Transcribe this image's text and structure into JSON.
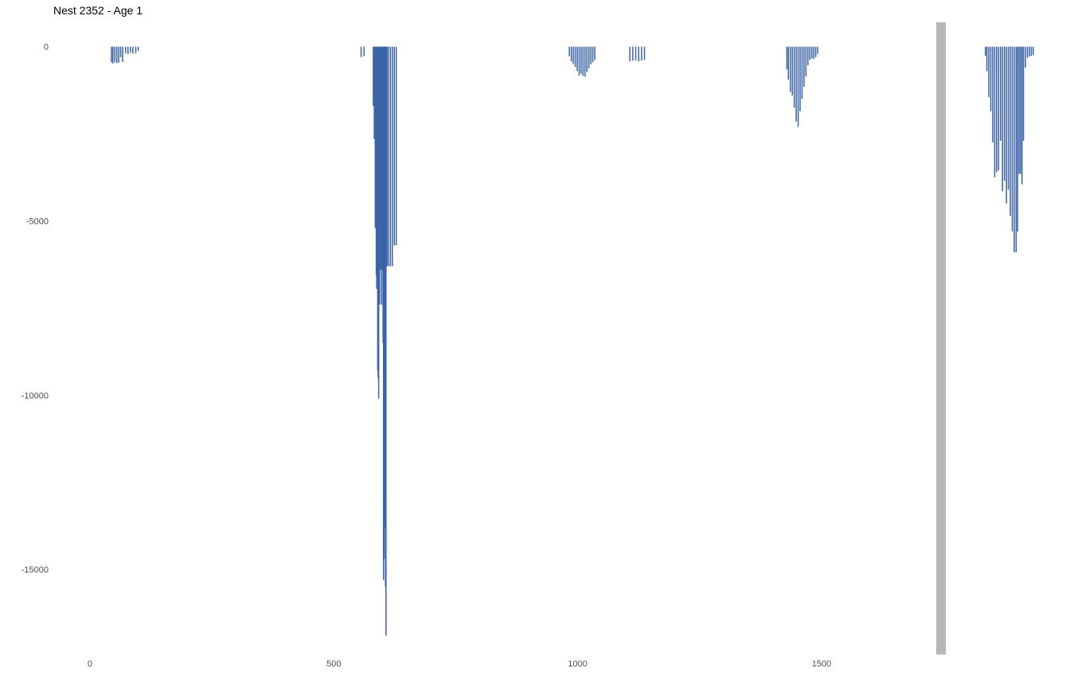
{
  "chart_data": {
    "type": "bar",
    "title": "Nest 2352 - Age 1",
    "xlabel": "",
    "ylabel": "",
    "xlim": [
      -155,
      1980
    ],
    "ylim": [
      -17900,
      700
    ],
    "x_ticks": [
      0,
      500,
      1000,
      1500
    ],
    "y_ticks": [
      0,
      -5000,
      -10000,
      -15000
    ],
    "grid": false,
    "bar_color": "#3a63a8",
    "highlight_color": "#b8b8b8",
    "highlight_x": 1745,
    "series": [
      {
        "values": [
          [
            44,
            -450
          ],
          [
            47,
            -480
          ],
          [
            51,
            -440
          ],
          [
            55,
            -470
          ],
          [
            59,
            -460
          ],
          [
            63,
            -300
          ],
          [
            67,
            -440
          ],
          [
            73,
            -190
          ],
          [
            78,
            -210
          ],
          [
            83,
            -170
          ],
          [
            88,
            -200
          ],
          [
            94,
            -190
          ],
          [
            99,
            -120
          ],
          [
            556,
            -300
          ],
          [
            562,
            -270
          ],
          [
            581,
            -1700
          ],
          [
            583,
            -2650
          ],
          [
            585,
            -5200
          ],
          [
            587,
            -6550
          ],
          [
            588,
            -6950
          ],
          [
            590,
            -9300
          ],
          [
            591,
            -9500
          ],
          [
            592,
            -10100
          ],
          [
            594,
            -7400
          ],
          [
            596,
            -6400
          ],
          [
            598,
            -7400
          ],
          [
            600,
            -6400
          ],
          [
            601,
            -8500
          ],
          [
            602,
            -15300
          ],
          [
            603,
            -14700
          ],
          [
            604,
            -13800
          ],
          [
            605,
            -13000
          ],
          [
            606,
            -15500
          ],
          [
            607,
            -16900
          ],
          [
            608,
            -4700
          ],
          [
            609,
            -6300
          ],
          [
            612,
            -6300
          ],
          [
            616,
            -6300
          ],
          [
            620,
            -6300
          ],
          [
            624,
            -5700
          ],
          [
            628,
            -5700
          ],
          [
            983,
            -270
          ],
          [
            987,
            -420
          ],
          [
            991,
            -500
          ],
          [
            995,
            -580
          ],
          [
            999,
            -700
          ],
          [
            1003,
            -830
          ],
          [
            1007,
            -780
          ],
          [
            1011,
            -840
          ],
          [
            1015,
            -860
          ],
          [
            1019,
            -720
          ],
          [
            1023,
            -620
          ],
          [
            1027,
            -500
          ],
          [
            1031,
            -450
          ],
          [
            1035,
            -380
          ],
          [
            1107,
            -420
          ],
          [
            1113,
            -400
          ],
          [
            1119,
            -390
          ],
          [
            1125,
            -420
          ],
          [
            1131,
            -400
          ],
          [
            1137,
            -380
          ],
          [
            1429,
            -650
          ],
          [
            1432,
            -950
          ],
          [
            1436,
            -1300
          ],
          [
            1440,
            -1400
          ],
          [
            1444,
            -1750
          ],
          [
            1448,
            -2150
          ],
          [
            1452,
            -2300
          ],
          [
            1456,
            -1850
          ],
          [
            1460,
            -1500
          ],
          [
            1464,
            -1150
          ],
          [
            1468,
            -850
          ],
          [
            1472,
            -530
          ],
          [
            1476,
            -380
          ],
          [
            1480,
            -340
          ],
          [
            1484,
            -350
          ],
          [
            1488,
            -300
          ],
          [
            1492,
            -210
          ],
          [
            1836,
            -260
          ],
          [
            1839,
            -700
          ],
          [
            1843,
            -1450
          ],
          [
            1847,
            -1850
          ],
          [
            1851,
            -2750
          ],
          [
            1855,
            -3750
          ],
          [
            1859,
            -3600
          ],
          [
            1863,
            -3550
          ],
          [
            1867,
            -2700
          ],
          [
            1871,
            -4150
          ],
          [
            1875,
            -3850
          ],
          [
            1879,
            -4500
          ],
          [
            1883,
            -4100
          ],
          [
            1887,
            -4850
          ],
          [
            1891,
            -5300
          ],
          [
            1895,
            -5900
          ],
          [
            1899,
            -5900
          ],
          [
            1902,
            -5300
          ],
          [
            1905,
            -3650
          ],
          [
            1908,
            -3650
          ],
          [
            1911,
            -3950
          ],
          [
            1914,
            -2700
          ],
          [
            1918,
            -600
          ],
          [
            1922,
            -320
          ],
          [
            1926,
            -280
          ],
          [
            1930,
            -260
          ],
          [
            1934,
            -240
          ]
        ]
      }
    ]
  }
}
